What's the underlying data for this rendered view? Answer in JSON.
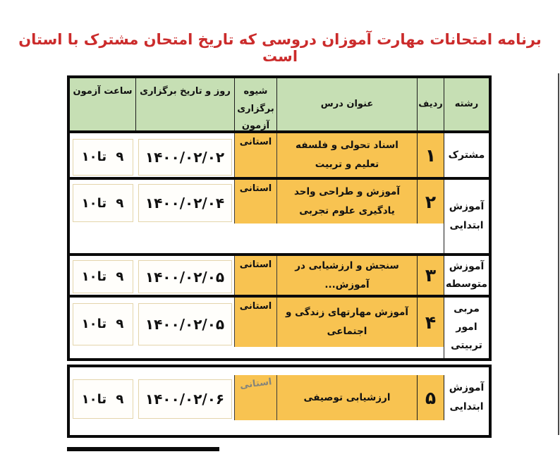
{
  "title": "برنامه امتحانات مهارت آموزان دروسی که تاریخ امتحان مشترک با استان است",
  "colors": {
    "title-red": "#cb2b2b",
    "header-green": "#c6dfb4",
    "cell-yellow": "#f8c351",
    "ink": "#111111",
    "light-border": "#e4d5ab"
  },
  "table": {
    "headers": {
      "time": "ساعت آزمون",
      "date": "روز و تاریخ برگزاری",
      "method": "شیوه برگزاری آزمون",
      "course": "عنوان درس",
      "row": "ردیف",
      "field": "رشته"
    },
    "rows": [
      {
        "field": "مشترک",
        "row": "۱",
        "course": "اسناد تحولی و فلسفه تعلیم و تربیت",
        "method": "استانی",
        "date": "۱۴۰۰/۰۲/۰۲",
        "time": "۹ تا۱۰"
      },
      {
        "field": "آموزش ابتدایی",
        "row": "۲",
        "course": "آموزش و طراحی واحد یادگیری علوم تجربی",
        "method": "استانی",
        "date": "۱۴۰۰/۰۲/۰۴",
        "time": "۹ تا۱۰"
      },
      {
        "field": "آموزش متوسطه",
        "row": "۳",
        "course": "سنجش و ارزشیابی در آموزش...",
        "method": "استانی",
        "date": "۱۴۰۰/۰۲/۰۵",
        "time": "۹ تا۱۰"
      },
      {
        "field": "مربی امور تربیتی",
        "row": "۴",
        "course": "آموزش مهارتهای زندگی و اجتماعی",
        "method": "استانی",
        "date": "۱۴۰۰/۰۲/۰۵",
        "time": "۹ تا۱۰"
      },
      {
        "field": "آموزش ابتدایی",
        "row": "۵",
        "course": "ارزشیابی توصیفی",
        "method": "استانی",
        "date": "۱۴۰۰/۰۲/۰۶",
        "time": "۹ تا۱۰"
      }
    ]
  }
}
